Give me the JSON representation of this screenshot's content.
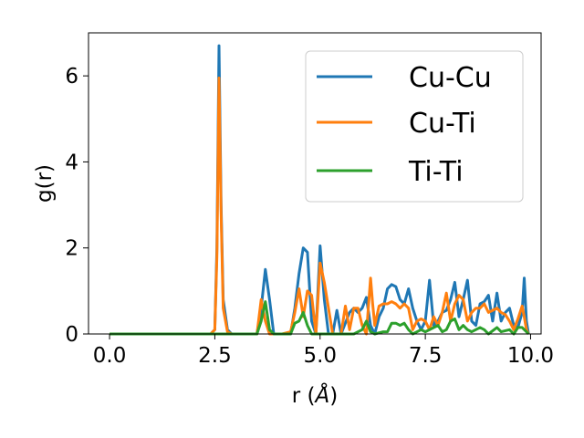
{
  "chart_data": {
    "type": "line",
    "xlabel": "r (",
    "xlabel_unit": "Å",
    "xlabel_close": ")",
    "ylabel": "g(r)",
    "xlim": [
      -0.5,
      10.25
    ],
    "ylim": [
      0,
      7.0
    ],
    "xticks": [
      0.0,
      2.5,
      5.0,
      7.5,
      10.0
    ],
    "xtick_labels": [
      "0.0",
      "2.5",
      "5.0",
      "7.5",
      "10.0"
    ],
    "yticks": [
      0,
      2,
      4,
      6
    ],
    "ytick_labels": [
      "0",
      "2",
      "4",
      "6"
    ],
    "grid": false,
    "legend_position": "top-right",
    "series": [
      {
        "name": "Cu-Cu",
        "color": "#1f77b4",
        "points": [
          [
            0,
            0
          ],
          [
            0.5,
            0
          ],
          [
            1.0,
            0
          ],
          [
            1.5,
            0
          ],
          [
            2.0,
            0
          ],
          [
            2.4,
            0
          ],
          [
            2.5,
            0.1
          ],
          [
            2.55,
            2.0
          ],
          [
            2.6,
            6.7
          ],
          [
            2.65,
            3.0
          ],
          [
            2.7,
            0.8
          ],
          [
            2.8,
            0.1
          ],
          [
            2.9,
            0
          ],
          [
            3.2,
            0
          ],
          [
            3.5,
            0
          ],
          [
            3.6,
            0.6
          ],
          [
            3.7,
            1.5
          ],
          [
            3.8,
            0.8
          ],
          [
            3.9,
            0
          ],
          [
            4.1,
            0
          ],
          [
            4.3,
            0
          ],
          [
            4.4,
            0.6
          ],
          [
            4.5,
            1.4
          ],
          [
            4.6,
            2.0
          ],
          [
            4.7,
            1.9
          ],
          [
            4.8,
            0.3
          ],
          [
            4.9,
            0
          ],
          [
            5.0,
            2.05
          ],
          [
            5.1,
            0.8
          ],
          [
            5.2,
            0
          ],
          [
            5.3,
            0
          ],
          [
            5.4,
            0.55
          ],
          [
            5.5,
            0
          ],
          [
            5.7,
            0.5
          ],
          [
            5.8,
            0.6
          ],
          [
            5.9,
            0.5
          ],
          [
            6.0,
            0.6
          ],
          [
            6.1,
            0.85
          ],
          [
            6.2,
            0.2
          ],
          [
            6.3,
            0
          ],
          [
            6.4,
            0.4
          ],
          [
            6.5,
            0.6
          ],
          [
            6.6,
            1.05
          ],
          [
            6.7,
            1.15
          ],
          [
            6.8,
            1.1
          ],
          [
            6.9,
            0.8
          ],
          [
            7.0,
            0.7
          ],
          [
            7.1,
            1.05
          ],
          [
            7.2,
            0.6
          ],
          [
            7.3,
            0.3
          ],
          [
            7.4,
            0.1
          ],
          [
            7.5,
            0.3
          ],
          [
            7.6,
            1.25
          ],
          [
            7.7,
            0.2
          ],
          [
            7.8,
            0.3
          ],
          [
            7.9,
            0.5
          ],
          [
            8.0,
            0.55
          ],
          [
            8.1,
            0.8
          ],
          [
            8.2,
            1.2
          ],
          [
            8.3,
            0.4
          ],
          [
            8.4,
            0.8
          ],
          [
            8.5,
            1.25
          ],
          [
            8.6,
            0.3
          ],
          [
            8.7,
            0.2
          ],
          [
            8.8,
            0.7
          ],
          [
            8.9,
            0.75
          ],
          [
            9.0,
            0.9
          ],
          [
            9.1,
            0.3
          ],
          [
            9.2,
            0.95
          ],
          [
            9.3,
            0.3
          ],
          [
            9.4,
            0.5
          ],
          [
            9.5,
            0.6
          ],
          [
            9.6,
            0.2
          ],
          [
            9.7,
            0.15
          ],
          [
            9.8,
            0.5
          ],
          [
            9.85,
            1.3
          ],
          [
            9.9,
            0.3
          ],
          [
            9.95,
            0
          ]
        ]
      },
      {
        "name": "Cu-Ti",
        "color": "#ff7f0e",
        "points": [
          [
            0,
            0
          ],
          [
            0.5,
            0
          ],
          [
            1.0,
            0
          ],
          [
            1.5,
            0
          ],
          [
            2.0,
            0
          ],
          [
            2.4,
            0
          ],
          [
            2.5,
            0.1
          ],
          [
            2.55,
            1.8
          ],
          [
            2.6,
            5.95
          ],
          [
            2.65,
            2.8
          ],
          [
            2.7,
            0.6
          ],
          [
            2.8,
            0.05
          ],
          [
            2.9,
            0
          ],
          [
            3.2,
            0
          ],
          [
            3.5,
            0
          ],
          [
            3.6,
            0.8
          ],
          [
            3.7,
            0.3
          ],
          [
            3.8,
            0
          ],
          [
            4.1,
            0
          ],
          [
            4.3,
            0.05
          ],
          [
            4.4,
            0.5
          ],
          [
            4.5,
            1.05
          ],
          [
            4.6,
            0.4
          ],
          [
            4.7,
            1.0
          ],
          [
            4.8,
            0.9
          ],
          [
            4.9,
            0
          ],
          [
            5.0,
            1.65
          ],
          [
            5.1,
            1.2
          ],
          [
            5.2,
            0.6
          ],
          [
            5.3,
            0
          ],
          [
            5.5,
            0
          ],
          [
            5.6,
            0.65
          ],
          [
            5.7,
            0.1
          ],
          [
            5.8,
            0.6
          ],
          [
            5.9,
            0.6
          ],
          [
            6.0,
            0.2
          ],
          [
            6.1,
            0
          ],
          [
            6.2,
            1.3
          ],
          [
            6.25,
            0.7
          ],
          [
            6.3,
            0.2
          ],
          [
            6.4,
            0.65
          ],
          [
            6.5,
            0.7
          ],
          [
            6.6,
            0.7
          ],
          [
            6.7,
            0.75
          ],
          [
            6.8,
            0.7
          ],
          [
            6.9,
            0.6
          ],
          [
            7.0,
            0.7
          ],
          [
            7.1,
            0.6
          ],
          [
            7.2,
            0.1
          ],
          [
            7.3,
            0.3
          ],
          [
            7.4,
            0.35
          ],
          [
            7.5,
            0.3
          ],
          [
            7.6,
            0.1
          ],
          [
            7.7,
            0.4
          ],
          [
            7.8,
            0.2
          ],
          [
            7.9,
            0.5
          ],
          [
            8.0,
            0.95
          ],
          [
            8.1,
            0.3
          ],
          [
            8.2,
            0.7
          ],
          [
            8.3,
            0.9
          ],
          [
            8.4,
            0.8
          ],
          [
            8.5,
            0.3
          ],
          [
            8.6,
            0.5
          ],
          [
            8.7,
            0.6
          ],
          [
            8.8,
            0.6
          ],
          [
            8.9,
            0.7
          ],
          [
            9.0,
            0.5
          ],
          [
            9.1,
            0.55
          ],
          [
            9.2,
            0.6
          ],
          [
            9.3,
            0.5
          ],
          [
            9.4,
            0.45
          ],
          [
            9.5,
            0.3
          ],
          [
            9.6,
            0.1
          ],
          [
            9.7,
            0.35
          ],
          [
            9.8,
            0.65
          ],
          [
            9.85,
            0.4
          ],
          [
            9.9,
            0.1
          ],
          [
            9.95,
            0
          ]
        ]
      },
      {
        "name": "Ti-Ti",
        "color": "#2ca02c",
        "points": [
          [
            0,
            0
          ],
          [
            0.5,
            0
          ],
          [
            1.0,
            0
          ],
          [
            1.5,
            0
          ],
          [
            2.0,
            0
          ],
          [
            2.5,
            0
          ],
          [
            3.0,
            0
          ],
          [
            3.5,
            0
          ],
          [
            3.6,
            0.3
          ],
          [
            3.7,
            0.75
          ],
          [
            3.8,
            0.1
          ],
          [
            3.9,
            0
          ],
          [
            4.2,
            0
          ],
          [
            4.3,
            0
          ],
          [
            4.4,
            0.25
          ],
          [
            4.5,
            0.3
          ],
          [
            4.6,
            0.5
          ],
          [
            4.7,
            0.2
          ],
          [
            4.8,
            0
          ],
          [
            5.2,
            0
          ],
          [
            5.5,
            0
          ],
          [
            5.8,
            0
          ],
          [
            6.0,
            0.1
          ],
          [
            6.1,
            0.3
          ],
          [
            6.2,
            0.05
          ],
          [
            6.3,
            0
          ],
          [
            6.5,
            0.05
          ],
          [
            6.6,
            0.05
          ],
          [
            6.7,
            0.25
          ],
          [
            6.8,
            0.25
          ],
          [
            6.9,
            0.2
          ],
          [
            7.0,
            0.25
          ],
          [
            7.1,
            0.1
          ],
          [
            7.2,
            0
          ],
          [
            7.4,
            0.1
          ],
          [
            7.5,
            0.05
          ],
          [
            7.6,
            0.1
          ],
          [
            7.8,
            0.2
          ],
          [
            7.9,
            0.05
          ],
          [
            8.0,
            0.1
          ],
          [
            8.1,
            0.3
          ],
          [
            8.2,
            0.35
          ],
          [
            8.3,
            0.1
          ],
          [
            8.4,
            0.2
          ],
          [
            8.5,
            0.1
          ],
          [
            8.6,
            0.05
          ],
          [
            8.8,
            0.15
          ],
          [
            8.9,
            0.1
          ],
          [
            9.0,
            0
          ],
          [
            9.2,
            0.15
          ],
          [
            9.3,
            0.05
          ],
          [
            9.5,
            0.1
          ],
          [
            9.6,
            0
          ],
          [
            9.7,
            0.15
          ],
          [
            9.8,
            0.15
          ],
          [
            9.9,
            0.05
          ],
          [
            9.95,
            0
          ]
        ]
      }
    ]
  }
}
